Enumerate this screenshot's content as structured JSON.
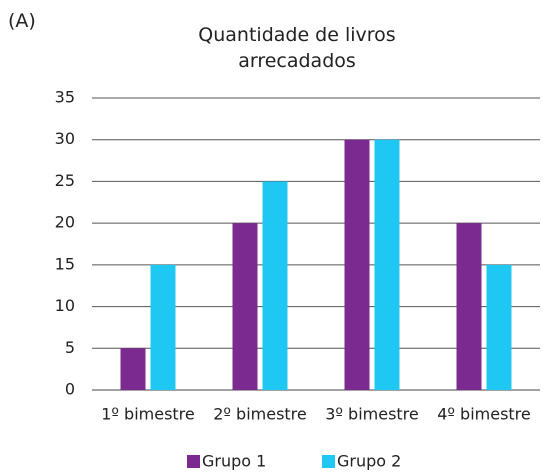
{
  "chart_data": {
    "type": "bar",
    "panel_label": "(A)",
    "title": "Quantidade de livros arrecadados",
    "categories": [
      "1º bimestre",
      "2º bimestre",
      "3º bimestre",
      "4º bimestre"
    ],
    "series": [
      {
        "name": "Grupo 1",
        "color": "#7b2b8f",
        "values": [
          5,
          20,
          30,
          20
        ]
      },
      {
        "name": "Grupo 2",
        "color": "#1ec8f2",
        "values": [
          15,
          25,
          30,
          15
        ]
      }
    ],
    "ylim": [
      0,
      35
    ],
    "yticks": [
      0,
      5,
      10,
      15,
      20,
      25,
      30,
      35
    ],
    "grid": true,
    "legend": "bottom"
  }
}
